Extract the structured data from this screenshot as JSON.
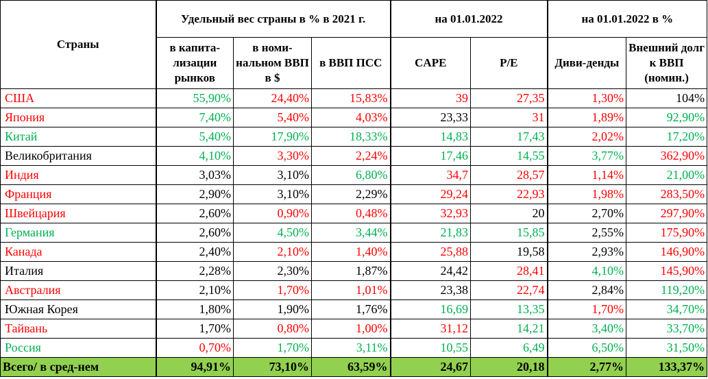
{
  "headers": {
    "countries": "Страны",
    "group_weight": "Удельный вес страны в % в 2021 г.",
    "group_date": "на 01.01.2022",
    "group_date_pct": "на 01.01.2022 в %",
    "market_cap": "в капита-лизации рынков",
    "nominal_gdp": "в номи-нальном ВВП в $",
    "gdp_ppp": "в ВВП ПСС",
    "cape": "CAPE",
    "pe": "P/E",
    "dividends": "Диви-денды",
    "debt_gdp": "Внешний долг к ВВП (номин.)"
  },
  "colors": {
    "red": "#ff0000",
    "green": "#00b050",
    "black": "#000000",
    "total_bg": "#92d050"
  },
  "rows": [
    {
      "country": "США",
      "cc": "red",
      "cells": [
        [
          "55,90%",
          "green"
        ],
        [
          "24,40%",
          "red"
        ],
        [
          "15,83%",
          "red"
        ],
        [
          "39",
          "red"
        ],
        [
          "27,35",
          "red"
        ],
        [
          "1,30%",
          "red"
        ],
        [
          "104%",
          "black"
        ]
      ]
    },
    {
      "country": "Япония",
      "cc": "red",
      "cells": [
        [
          "7,40%",
          "green"
        ],
        [
          "5,40%",
          "red"
        ],
        [
          "4,03%",
          "red"
        ],
        [
          "23,33",
          "black"
        ],
        [
          "31",
          "red"
        ],
        [
          "1,89%",
          "red"
        ],
        [
          "92,90%",
          "green"
        ]
      ]
    },
    {
      "country": "Китай",
      "cc": "green",
      "cells": [
        [
          "5,40%",
          "green"
        ],
        [
          "17,90%",
          "green"
        ],
        [
          "18,33%",
          "green"
        ],
        [
          "14,83",
          "green"
        ],
        [
          "17,43",
          "green"
        ],
        [
          "2,02%",
          "red"
        ],
        [
          "17,20%",
          "green"
        ]
      ]
    },
    {
      "country": "Великобритания",
      "cc": "black",
      "cells": [
        [
          "4,10%",
          "green"
        ],
        [
          "3,30%",
          "red"
        ],
        [
          "2,24%",
          "red"
        ],
        [
          "17,46",
          "green"
        ],
        [
          "14,55",
          "green"
        ],
        [
          "3,77%",
          "green"
        ],
        [
          "362,90%",
          "red"
        ]
      ]
    },
    {
      "country": "Индия",
      "cc": "red",
      "cells": [
        [
          "3,03%",
          "black"
        ],
        [
          "3,10%",
          "black"
        ],
        [
          "6,80%",
          "green"
        ],
        [
          "34,7",
          "red"
        ],
        [
          "28,57",
          "red"
        ],
        [
          "1,14%",
          "red"
        ],
        [
          "21,00%",
          "green"
        ]
      ]
    },
    {
      "country": "Франция",
      "cc": "red",
      "cells": [
        [
          "2,90%",
          "black"
        ],
        [
          "3,10%",
          "black"
        ],
        [
          "2,29%",
          "black"
        ],
        [
          "29,24",
          "red"
        ],
        [
          "22,93",
          "red"
        ],
        [
          "1,98%",
          "red"
        ],
        [
          "283,50%",
          "red"
        ]
      ]
    },
    {
      "country": "Швейцария",
      "cc": "red",
      "cells": [
        [
          "2,60%",
          "black"
        ],
        [
          "0,90%",
          "red"
        ],
        [
          "0,48%",
          "red"
        ],
        [
          "32,93",
          "red"
        ],
        [
          "20",
          "black"
        ],
        [
          "2,70%",
          "black"
        ],
        [
          "297,90%",
          "red"
        ]
      ]
    },
    {
      "country": "Германия",
      "cc": "green",
      "cells": [
        [
          "2,60%",
          "black"
        ],
        [
          "4,50%",
          "green"
        ],
        [
          "3,44%",
          "green"
        ],
        [
          "21,83",
          "green"
        ],
        [
          "15,85",
          "green"
        ],
        [
          "2,55%",
          "black"
        ],
        [
          "175,90%",
          "red"
        ]
      ]
    },
    {
      "country": "Канада",
      "cc": "red",
      "cells": [
        [
          "2,40%",
          "black"
        ],
        [
          "2,10%",
          "red"
        ],
        [
          "1,40%",
          "red"
        ],
        [
          "25,88",
          "red"
        ],
        [
          "19,58",
          "black"
        ],
        [
          "2,93%",
          "black"
        ],
        [
          "146,90%",
          "red"
        ]
      ]
    },
    {
      "country": "Италия",
      "cc": "black",
      "cells": [
        [
          "2,28%",
          "black"
        ],
        [
          "2,30%",
          "black"
        ],
        [
          "1,87%",
          "black"
        ],
        [
          "24,42",
          "black"
        ],
        [
          "28,41",
          "red"
        ],
        [
          "4,10%",
          "green"
        ],
        [
          "145,90%",
          "red"
        ]
      ]
    },
    {
      "country": "Австралия",
      "cc": "red",
      "cells": [
        [
          "2,10%",
          "black"
        ],
        [
          "1,70%",
          "red"
        ],
        [
          "1,01%",
          "red"
        ],
        [
          "23,38",
          "black"
        ],
        [
          "22,74",
          "red"
        ],
        [
          "2,84%",
          "black"
        ],
        [
          "119,20%",
          "green"
        ]
      ]
    },
    {
      "country": "Южная Корея",
      "cc": "black",
      "cells": [
        [
          "1,80%",
          "black"
        ],
        [
          "1,90%",
          "black"
        ],
        [
          "1,76%",
          "black"
        ],
        [
          "16,69",
          "green"
        ],
        [
          "13,35",
          "green"
        ],
        [
          "1,70%",
          "red"
        ],
        [
          "34,70%",
          "green"
        ]
      ]
    },
    {
      "country": "Тайвань",
      "cc": "red",
      "cells": [
        [
          "1,70%",
          "black"
        ],
        [
          "0,80%",
          "red"
        ],
        [
          "1,00%",
          "red"
        ],
        [
          "31,12",
          "red"
        ],
        [
          "14,21",
          "green"
        ],
        [
          "3,40%",
          "green"
        ],
        [
          "33,70%",
          "green"
        ]
      ]
    },
    {
      "country": "Россия",
      "cc": "green",
      "cells": [
        [
          "0,70%",
          "red"
        ],
        [
          "1,70%",
          "green"
        ],
        [
          "3,11%",
          "green"
        ],
        [
          "10,55",
          "green"
        ],
        [
          "6,49",
          "green"
        ],
        [
          "6,50%",
          "green"
        ],
        [
          "31,50%",
          "green"
        ]
      ]
    }
  ],
  "total": {
    "label": "Всего/ в сред-нем",
    "cells": [
      "94,91%",
      "73,10%",
      "63,59%",
      "24,67",
      "20,18",
      "2,77%",
      "133,37%"
    ]
  }
}
